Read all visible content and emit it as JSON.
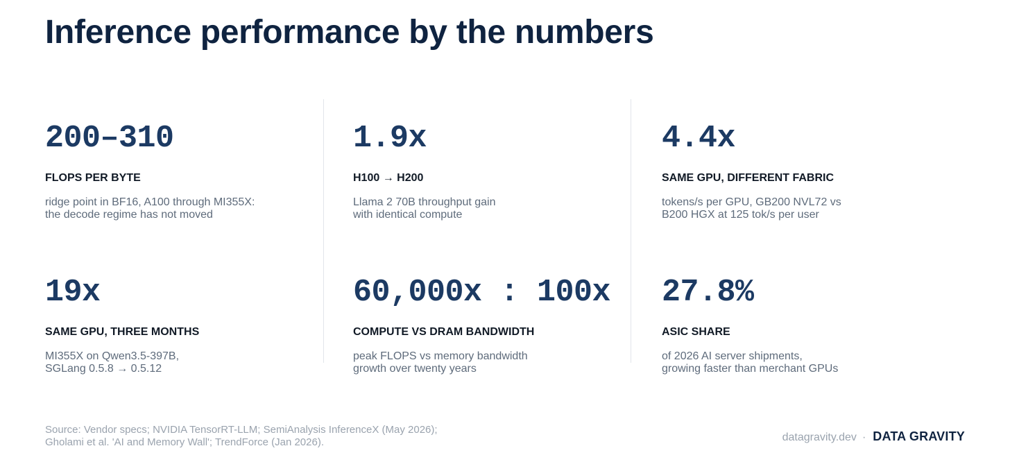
{
  "title": "Inference performance by the numbers",
  "stats": [
    {
      "value": "200–310",
      "label": "FLOPS PER BYTE",
      "desc": [
        "ridge point in BF16, A100 through MI355X:",
        "the decode regime has not moved"
      ]
    },
    {
      "value": "1.9x",
      "label": "H100 → H200",
      "desc": [
        "Llama 2 70B throughput gain",
        "with identical compute"
      ]
    },
    {
      "value": "4.4x",
      "label": "SAME GPU, DIFFERENT FABRIC",
      "desc": [
        "tokens/s per GPU, GB200 NVL72 vs",
        "B200 HGX at 125 tok/s per user"
      ]
    },
    {
      "value": "19x",
      "label": "SAME GPU, THREE MONTHS",
      "desc": [
        "MI355X on Qwen3.5-397B,",
        "SGLang 0.5.8 → 0.5.12"
      ]
    },
    {
      "value": "60,000x : 100x",
      "label": "COMPUTE VS DRAM BANDWIDTH",
      "desc": [
        "peak FLOPS vs memory bandwidth",
        "growth over twenty years"
      ]
    },
    {
      "value": "27.8%",
      "label": "ASIC SHARE",
      "desc": [
        "of 2026 AI server shipments,",
        "growing faster than merchant GPUs"
      ]
    }
  ],
  "source": [
    "Source: Vendor specs; NVIDIA TensorRT-LLM; SemiAnalysis InferenceX (May 2026);",
    "Gholami et al. 'AI and Memory Wall'; TrendForce (Jan 2026)."
  ],
  "footer": {
    "site": "datagravity.dev",
    "separator": "·",
    "brand": "DATA GRAVITY"
  }
}
